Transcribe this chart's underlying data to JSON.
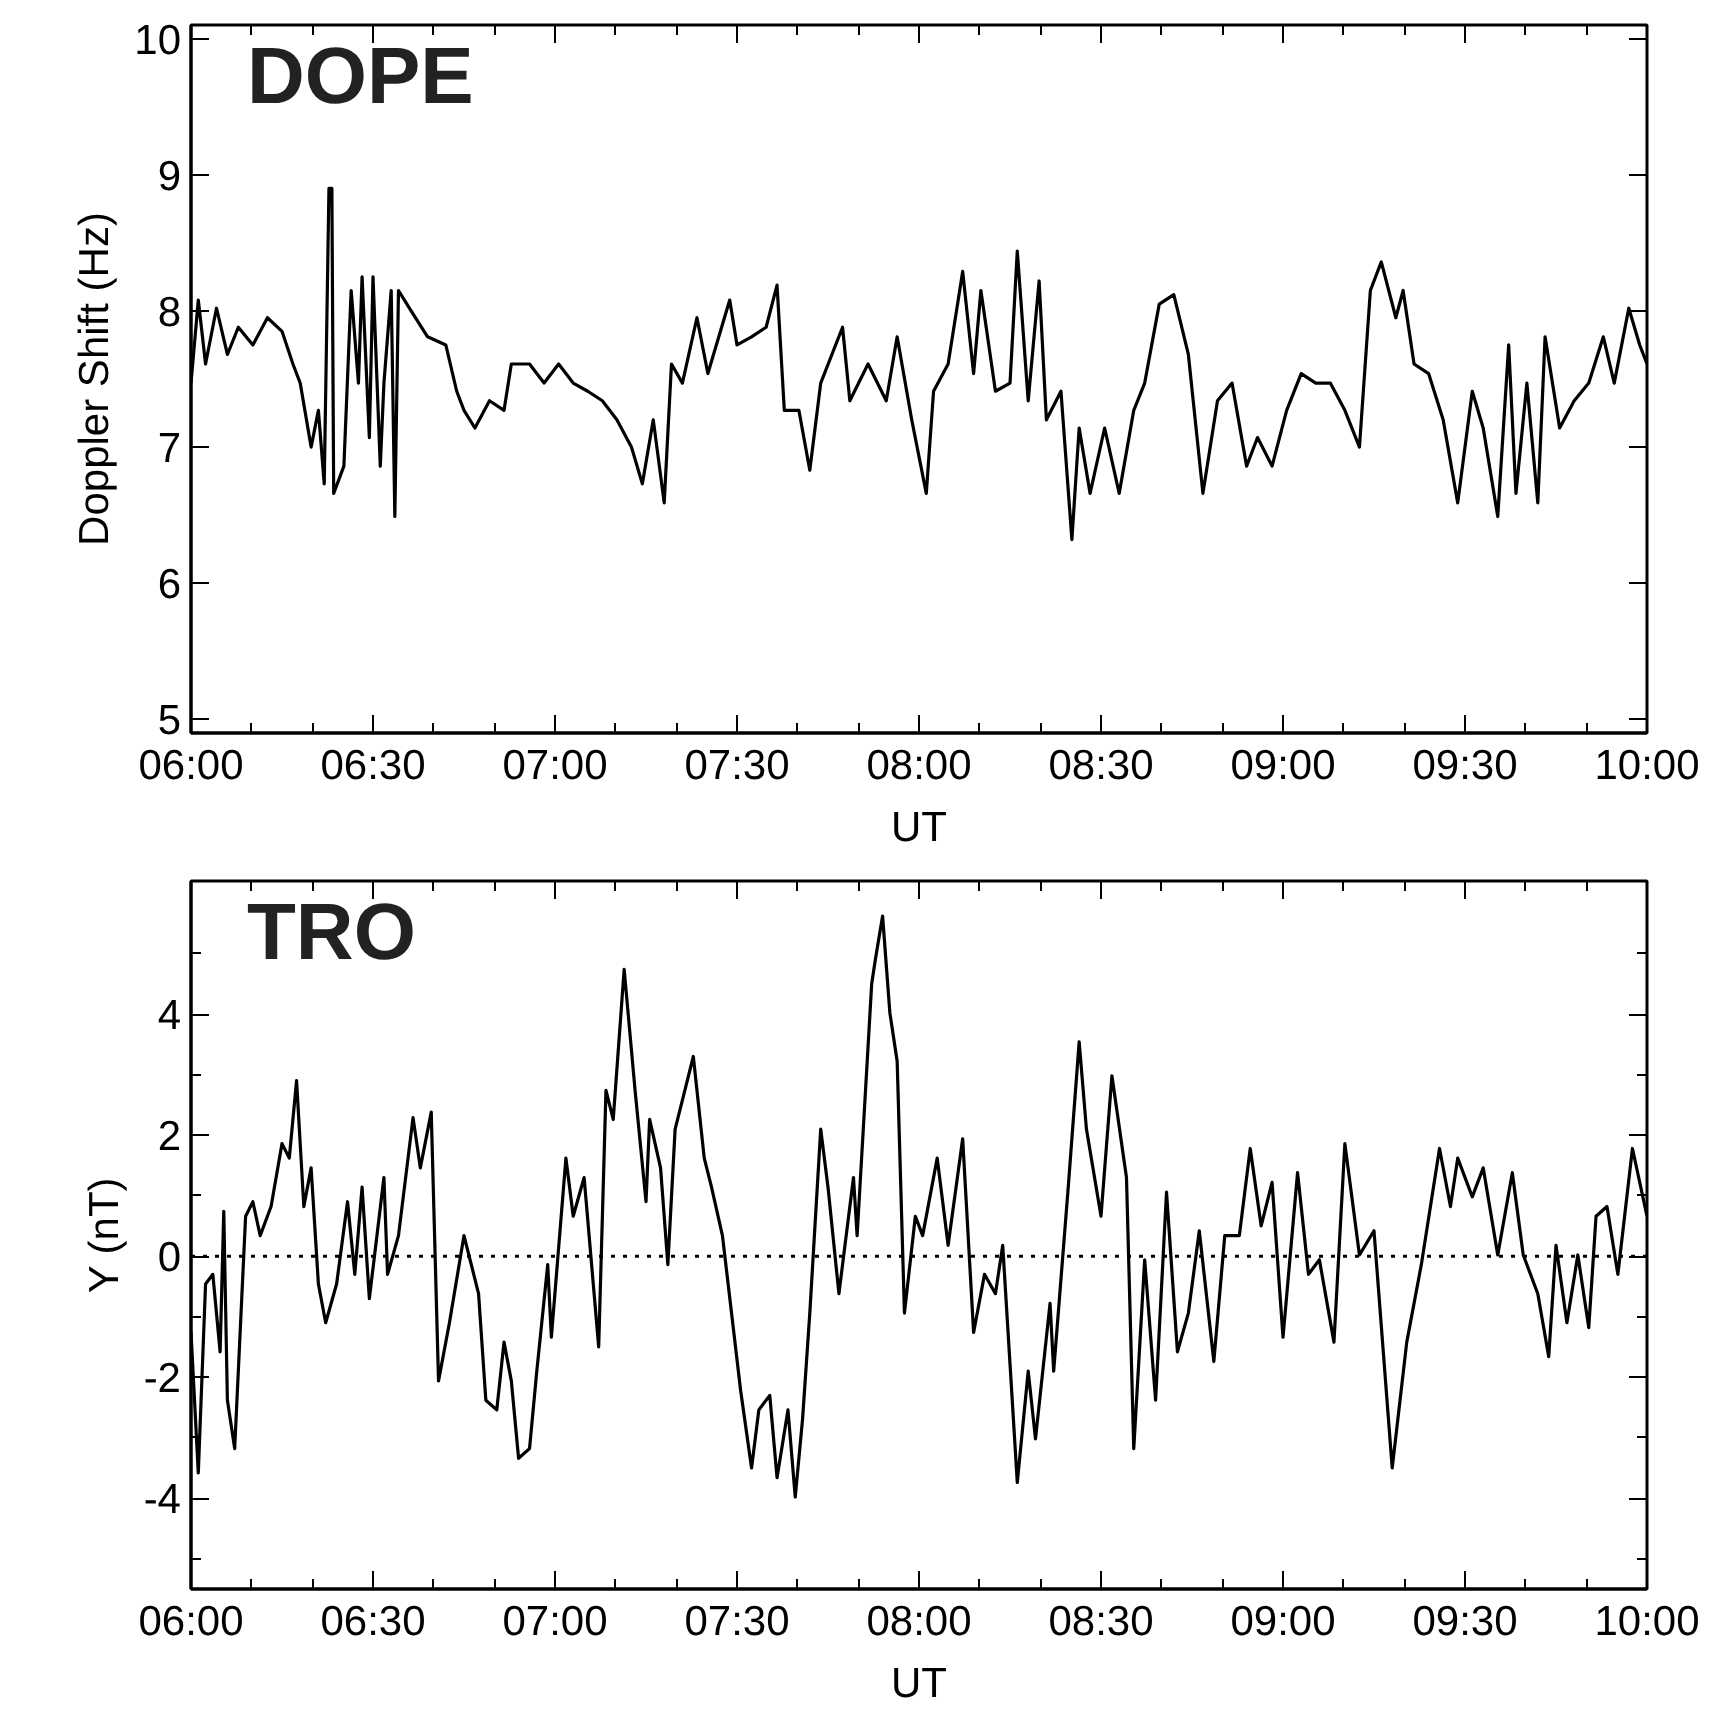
{
  "chart_data": [
    {
      "type": "line",
      "xlabel": "UT",
      "ylabel": "Doppler Shift (Hz)",
      "annotations": [
        "DOPE"
      ],
      "xlim": [
        6,
        10
      ],
      "ylim": [
        4.9,
        10.1
      ],
      "xticks": [
        {
          "value": 6,
          "label": "06:00"
        },
        {
          "value": 6.1667,
          "label": null
        },
        {
          "value": 6.3333,
          "label": null
        },
        {
          "value": 6.5,
          "label": "06:30"
        },
        {
          "value": 6.6667,
          "label": null
        },
        {
          "value": 6.8333,
          "label": null
        },
        {
          "value": 7,
          "label": "07:00"
        },
        {
          "value": 7.1667,
          "label": null
        },
        {
          "value": 7.3333,
          "label": null
        },
        {
          "value": 7.5,
          "label": "07:30"
        },
        {
          "value": 7.6667,
          "label": null
        },
        {
          "value": 7.8333,
          "label": null
        },
        {
          "value": 8,
          "label": "08:00"
        },
        {
          "value": 8.1667,
          "label": null
        },
        {
          "value": 8.3333,
          "label": null
        },
        {
          "value": 8.5,
          "label": "08:30"
        },
        {
          "value": 8.6667,
          "label": null
        },
        {
          "value": 8.8333,
          "label": null
        },
        {
          "value": 9,
          "label": "09:00"
        },
        {
          "value": 9.1667,
          "label": null
        },
        {
          "value": 9.3333,
          "label": null
        },
        {
          "value": 9.5,
          "label": "09:30"
        },
        {
          "value": 9.6667,
          "label": null
        },
        {
          "value": 9.8333,
          "label": null
        },
        {
          "value": 10,
          "label": "10:00"
        }
      ],
      "yticks": [
        5,
        6,
        7,
        8,
        9,
        10
      ],
      "series": [
        {
          "color": "#000000",
          "x": [
            6.0,
            6.02,
            6.04,
            6.07,
            6.1,
            6.13,
            6.17,
            6.21,
            6.25,
            6.28,
            6.3,
            6.33,
            6.35,
            6.366,
            6.379,
            6.387,
            6.392,
            6.42,
            6.44,
            6.46,
            6.47,
            6.49,
            6.5,
            6.52,
            6.53,
            6.55,
            6.56,
            6.57,
            6.6,
            6.65,
            6.7,
            6.73,
            6.75,
            6.78,
            6.82,
            6.86,
            6.88,
            6.93,
            6.97,
            7.01,
            7.05,
            7.09,
            7.13,
            7.17,
            7.21,
            7.24,
            7.27,
            7.3,
            7.32,
            7.35,
            7.39,
            7.42,
            7.48,
            7.5,
            7.54,
            7.58,
            7.61,
            7.63,
            7.67,
            7.7,
            7.73,
            7.79,
            7.81,
            7.86,
            7.91,
            7.94,
            7.98,
            8.02,
            8.04,
            8.08,
            8.12,
            8.15,
            8.17,
            8.21,
            8.25,
            8.27,
            8.3,
            8.33,
            8.35,
            8.39,
            8.42,
            8.44,
            8.47,
            8.51,
            8.55,
            8.59,
            8.62,
            8.66,
            8.7,
            8.74,
            8.78,
            8.82,
            8.86,
            8.9,
            8.93,
            8.97,
            9.01,
            9.05,
            9.09,
            9.13,
            9.17,
            9.21,
            9.24,
            9.27,
            9.31,
            9.33,
            9.36,
            9.4,
            9.44,
            9.48,
            9.52,
            9.55,
            9.59,
            9.62,
            9.64,
            9.67,
            9.7,
            9.72,
            9.76,
            9.8,
            9.84,
            9.88,
            9.91,
            9.95,
            9.98,
            10.0
          ],
          "values": [
            7.47,
            8.08,
            7.61,
            8.02,
            7.68,
            7.88,
            7.75,
            7.95,
            7.85,
            7.61,
            7.47,
            7.0,
            7.27,
            6.73,
            8.9,
            8.9,
            6.66,
            6.86,
            8.15,
            7.47,
            8.25,
            7.07,
            8.25,
            6.86,
            7.47,
            8.15,
            6.49,
            8.15,
            8.02,
            7.81,
            7.75,
            7.41,
            7.27,
            7.14,
            7.34,
            7.27,
            7.61,
            7.61,
            7.47,
            7.61,
            7.47,
            7.41,
            7.34,
            7.2,
            7.0,
            6.73,
            7.2,
            6.59,
            7.61,
            7.47,
            7.95,
            7.54,
            8.08,
            7.75,
            7.81,
            7.88,
            8.19,
            7.27,
            7.27,
            6.83,
            7.47,
            7.88,
            7.34,
            7.61,
            7.34,
            7.81,
            7.2,
            6.66,
            7.41,
            7.61,
            8.29,
            7.54,
            8.15,
            7.41,
            7.47,
            8.44,
            7.34,
            8.22,
            7.2,
            7.41,
            6.32,
            7.14,
            6.66,
            7.14,
            6.66,
            7.27,
            7.47,
            8.05,
            8.12,
            7.68,
            6.66,
            7.34,
            7.47,
            6.86,
            7.07,
            6.86,
            7.27,
            7.54,
            7.47,
            7.47,
            7.27,
            7.0,
            8.15,
            8.36,
            7.95,
            8.15,
            7.61,
            7.54,
            7.2,
            6.59,
            7.41,
            7.14,
            6.49,
            7.75,
            6.66,
            7.47,
            6.59,
            7.81,
            7.14,
            7.34,
            7.47,
            7.81,
            7.47,
            8.02,
            7.75,
            7.61
          ]
        }
      ]
    },
    {
      "type": "line",
      "xlabel": "UT",
      "ylabel": "Y (nT)",
      "annotations": [
        "TRO"
      ],
      "xlim": [
        6,
        10
      ],
      "ylim": [
        -5.5,
        6.2
      ],
      "xticks": [
        {
          "value": 6,
          "label": "06:00"
        },
        {
          "value": 6.1667,
          "label": null
        },
        {
          "value": 6.3333,
          "label": null
        },
        {
          "value": 6.5,
          "label": "06:30"
        },
        {
          "value": 6.6667,
          "label": null
        },
        {
          "value": 6.8333,
          "label": null
        },
        {
          "value": 7,
          "label": "07:00"
        },
        {
          "value": 7.1667,
          "label": null
        },
        {
          "value": 7.3333,
          "label": null
        },
        {
          "value": 7.5,
          "label": "07:30"
        },
        {
          "value": 7.6667,
          "label": null
        },
        {
          "value": 7.8333,
          "label": null
        },
        {
          "value": 8,
          "label": "08:00"
        },
        {
          "value": 8.1667,
          "label": null
        },
        {
          "value": 8.3333,
          "label": null
        },
        {
          "value": 8.5,
          "label": "08:30"
        },
        {
          "value": 8.6667,
          "label": null
        },
        {
          "value": 8.8333,
          "label": null
        },
        {
          "value": 9,
          "label": "09:00"
        },
        {
          "value": 9.1667,
          "label": null
        },
        {
          "value": 9.3333,
          "label": null
        },
        {
          "value": 9.5,
          "label": "09:30"
        },
        {
          "value": 9.6667,
          "label": null
        },
        {
          "value": 9.8333,
          "label": null
        },
        {
          "value": 10,
          "label": "10:00"
        }
      ],
      "yticks": [
        {
          "value": -5,
          "label": null
        },
        -4,
        {
          "value": -3,
          "label": null
        },
        -2,
        {
          "value": -1,
          "label": null
        },
        0,
        {
          "value": 1,
          "label": null
        },
        2,
        {
          "value": 3,
          "label": null
        },
        4,
        {
          "value": 5,
          "label": null
        }
      ],
      "ref_lines": [
        {
          "axis": "y",
          "value": 0,
          "color": "#000000",
          "line_style": "dotted"
        }
      ],
      "series": [
        {
          "color": "#000000",
          "x": [
            6.0,
            6.02,
            6.04,
            6.06,
            6.08,
            6.09,
            6.1,
            6.12,
            6.15,
            6.17,
            6.19,
            6.22,
            6.25,
            6.27,
            6.29,
            6.31,
            6.33,
            6.35,
            6.37,
            6.4,
            6.43,
            6.45,
            6.47,
            6.49,
            6.53,
            6.54,
            6.57,
            6.61,
            6.63,
            6.66,
            6.68,
            6.71,
            6.75,
            6.79,
            6.81,
            6.84,
            6.86,
            6.88,
            6.9,
            6.93,
            6.95,
            6.98,
            6.99,
            7.03,
            7.05,
            7.08,
            7.12,
            7.14,
            7.16,
            7.19,
            7.22,
            7.25,
            7.26,
            7.29,
            7.31,
            7.33,
            7.35,
            7.38,
            7.41,
            7.43,
            7.46,
            7.51,
            7.54,
            7.56,
            7.59,
            7.61,
            7.64,
            7.66,
            7.68,
            7.7,
            7.73,
            7.75,
            7.78,
            7.82,
            7.83,
            7.87,
            7.88,
            7.9,
            7.92,
            7.94,
            7.96,
            7.99,
            8.01,
            8.05,
            8.08,
            8.12,
            8.15,
            8.18,
            8.21,
            8.23,
            8.27,
            8.3,
            8.32,
            8.36,
            8.37,
            8.41,
            8.44,
            8.46,
            8.5,
            8.53,
            8.57,
            8.59,
            8.62,
            8.65,
            8.68,
            8.71,
            8.74,
            8.77,
            8.81,
            8.84,
            8.88,
            8.91,
            8.94,
            8.97,
            9.0,
            9.04,
            9.07,
            9.1,
            9.14,
            9.17,
            9.21,
            9.25,
            9.3,
            9.34,
            9.38,
            9.43,
            9.46,
            9.48,
            9.52,
            9.55,
            9.59,
            9.63,
            9.66,
            9.7,
            9.73,
            9.75,
            9.78,
            9.81,
            9.84,
            9.86,
            9.89,
            9.92,
            9.96,
            10.0
          ],
          "values": [
            -1.26,
            -3.58,
            -0.46,
            -0.3,
            -1.58,
            0.74,
            -2.38,
            -3.18,
            0.66,
            0.9,
            0.34,
            0.82,
            1.86,
            1.62,
            2.9,
            0.82,
            1.46,
            -0.46,
            -1.1,
            -0.46,
            0.9,
            -0.3,
            1.14,
            -0.7,
            1.3,
            -0.3,
            0.34,
            2.29,
            1.46,
            2.38,
            -2.06,
            -1.1,
            0.34,
            -0.62,
            -2.38,
            -2.54,
            -1.42,
            -2.06,
            -3.34,
            -3.18,
            -1.9,
            -0.14,
            -1.34,
            1.62,
            0.66,
            1.3,
            -1.5,
            2.74,
            2.26,
            4.74,
            2.74,
            0.9,
            2.26,
            1.46,
            -0.14,
            2.1,
            2.58,
            3.3,
            1.62,
            1.14,
            0.34,
            -2.22,
            -3.5,
            -2.54,
            -2.3,
            -3.66,
            -2.54,
            -3.98,
            -2.7,
            -0.94,
            2.1,
            1.14,
            -0.62,
            1.3,
            0.34,
            4.5,
            4.9,
            5.62,
            4.02,
            3.22,
            -0.94,
            0.66,
            0.34,
            1.62,
            0.18,
            1.94,
            -1.26,
            -0.3,
            -0.62,
            0.18,
            -3.74,
            -1.9,
            -3.02,
            -0.78,
            -1.9,
            1.14,
            3.54,
            2.1,
            0.66,
            2.98,
            1.3,
            -3.18,
            -0.06,
            -2.38,
            1.06,
            -1.58,
            -0.94,
            0.42,
            -1.74,
            0.34,
            0.34,
            1.78,
            0.5,
            1.22,
            -1.34,
            1.38,
            -0.3,
            -0.06,
            -1.42,
            1.86,
            0.02,
            0.42,
            -3.5,
            -1.42,
            -0.14,
            1.78,
            0.82,
            1.62,
            0.98,
            1.46,
            0.02,
            1.38,
            0.02,
            -0.62,
            -1.66,
            0.18,
            -1.1,
            0.02,
            -1.18,
            0.66,
            0.82,
            -0.3,
            1.78,
            0.66
          ]
        }
      ]
    }
  ]
}
